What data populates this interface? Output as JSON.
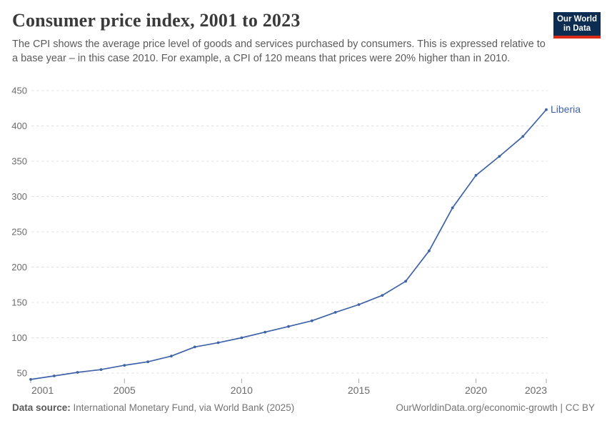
{
  "header": {
    "title": "Consumer price index, 2001 to 2023",
    "subtitle": "The CPI shows the average price level of goods and services purchased by consumers. This is expressed relative to a base year – in this case 2010. For example, a CPI of 120 means that prices were 20% higher than in 2010.",
    "logo": {
      "line1": "Our World",
      "line2": "in Data",
      "bg_color": "#0d2c51",
      "accent_color": "#dc2a1b"
    }
  },
  "chart_data": {
    "type": "line",
    "title": "Consumer price index, 2001 to 2023",
    "xlabel": "",
    "ylabel": "",
    "x": [
      2001,
      2002,
      2003,
      2004,
      2005,
      2006,
      2007,
      2008,
      2009,
      2010,
      2011,
      2012,
      2013,
      2014,
      2015,
      2016,
      2017,
      2018,
      2019,
      2020,
      2021,
      2022,
      2023
    ],
    "series": [
      {
        "name": "Liberia",
        "color": "#3e63a8",
        "values": [
          41,
          46,
          51,
          55,
          61,
          66,
          74,
          87,
          93,
          100,
          108,
          116,
          124,
          136,
          147,
          160,
          180,
          223,
          284,
          330,
          357,
          385,
          423
        ]
      }
    ],
    "end_label": "Liberia",
    "xlim": [
      2001,
      2023
    ],
    "ylim": [
      38,
      450
    ],
    "yticks": [
      50,
      100,
      150,
      200,
      250,
      300,
      350,
      400,
      450
    ],
    "xticks": [
      2001,
      2005,
      2010,
      2015,
      2020,
      2023
    ],
    "grid": "horizontal-dashed",
    "grid_color": "#e0e0e0",
    "tick_color": "#a8a8a8",
    "axis_label_color": "#6b6b6b",
    "legend_position": "end-of-line"
  },
  "footer": {
    "source_label": "Data source:",
    "source_text": " International Monetary Fund, via World Bank (2025)",
    "right_text": "OurWorldinData.org/economic-growth | CC BY"
  }
}
